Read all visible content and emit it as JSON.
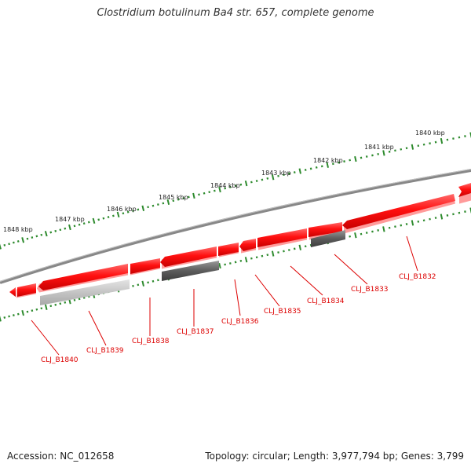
{
  "title": "Clostridium botulinum Ba4 str. 657, complete genome",
  "footer": {
    "accession": "Accession: NC_012658",
    "summary": "Topology: circular; Length: 3,977,794 bp; Genes: 3,799"
  },
  "colors": {
    "gene_forward": "#ff0000",
    "feature_gray_dark": "#5a5a5a",
    "feature_gray_light": "#c8c8c8",
    "backbone": "#8a8a8a",
    "tick": "#2e8b2e",
    "locus_label": "#dd0000"
  },
  "kbp_labels": [
    "1840 kbp",
    "1841 kbp",
    "1842 kbp",
    "1843 kbp",
    "1844 kbp",
    "1845 kbp",
    "1846 kbp",
    "1847 kbp",
    "1848 kbp"
  ],
  "locus_tags": [
    "CLJ_B1832",
    "CLJ_B1833",
    "CLJ_B1834",
    "CLJ_B1835",
    "CLJ_B1836",
    "CLJ_B1837",
    "CLJ_B1838",
    "CLJ_B1839",
    "CLJ_B1840"
  ]
}
